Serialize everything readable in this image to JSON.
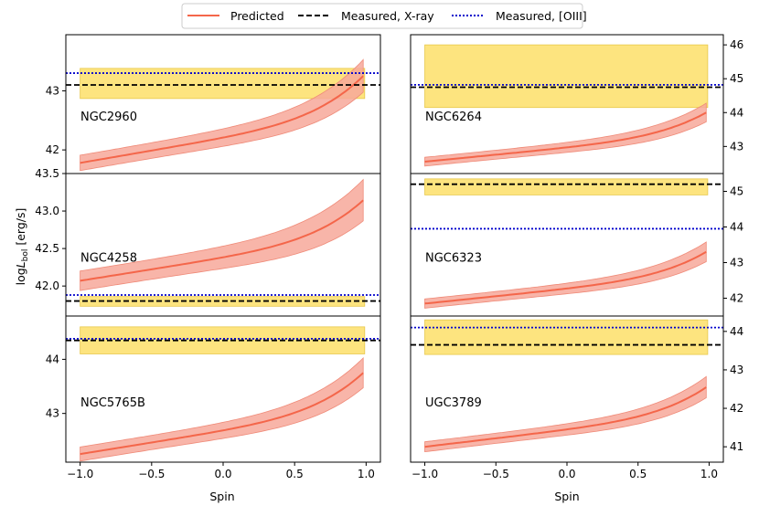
{
  "chart_data": {
    "type": "line",
    "ylabel": "logL_bol [erg/s]",
    "ylabel_parts": {
      "prefix": "log",
      "var": "L",
      "sub": "bol",
      "unit": " [erg/s]"
    },
    "legend": [
      {
        "name": "Predicted",
        "style": "solid",
        "color": "#f4664a"
      },
      {
        "name": "Measured, X-ray",
        "style": "dashed",
        "color": "#000000"
      },
      {
        "name": "Measured, [OIII]",
        "style": "dotted",
        "color": "#0000cc"
      }
    ],
    "colors": {
      "predicted": "#f4664a",
      "band": "#f7a89a",
      "measured_band": "#fde47f",
      "xray": "#000000",
      "oiii": "#0000cc"
    },
    "columns": [
      {
        "xlabel": "Spin",
        "xlim": [
          -1.1,
          1.1
        ],
        "xticks": [
          -1.0,
          -0.5,
          0.0,
          0.5,
          1.0
        ],
        "xtick_labels": [
          "−1.0",
          "−0.5",
          "0.0",
          "0.5",
          "1.0"
        ],
        "ytick_side": "left",
        "panels": [
          {
            "galaxy": "NGC2960",
            "ylim": [
              41.6,
              43.95
            ],
            "yticks": [
              42,
              43
            ],
            "ytick_labels": [
              "42",
              "43"
            ],
            "pred_start": 41.78,
            "pred_end": 43.3,
            "pred_width_start": 0.13,
            "pred_width_end": 0.28,
            "xray": 43.1,
            "oiii": 43.3,
            "measured_band": [
              42.87,
              43.38
            ]
          },
          {
            "galaxy": "NGC4258",
            "ylim": [
              41.6,
              43.5
            ],
            "yticks": [
              42.0,
              42.5,
              43.0,
              43.5
            ],
            "ytick_labels": [
              "42.0",
              "42.5",
              "43.0",
              "43.5"
            ],
            "pred_start": 42.07,
            "pred_end": 43.18,
            "pred_width_start": 0.13,
            "pred_width_end": 0.28,
            "xray": 41.8,
            "oiii": 41.88,
            "measured_band": [
              41.73,
              41.86
            ]
          },
          {
            "galaxy": "NGC5765B",
            "ylim": [
              42.1,
              44.8
            ],
            "yticks": [
              43,
              44
            ],
            "ytick_labels": [
              "43",
              "44"
            ],
            "pred_start": 42.25,
            "pred_end": 43.8,
            "pred_width_start": 0.13,
            "pred_width_end": 0.28,
            "xray": 44.35,
            "oiii": 44.38,
            "measured_band": [
              44.1,
              44.6
            ]
          }
        ]
      },
      {
        "xlabel": "Spin",
        "xlim": [
          -1.1,
          1.1
        ],
        "xticks": [
          -1.0,
          -0.5,
          0.0,
          0.5,
          1.0
        ],
        "xtick_labels": [
          "−1.0",
          "−0.5",
          "0.0",
          "0.5",
          "1.0"
        ],
        "ytick_side": "right",
        "panels": [
          {
            "galaxy": "NGC6264",
            "ylim": [
              42.2,
              46.3
            ],
            "yticks": [
              43,
              44,
              45,
              46
            ],
            "ytick_labels": [
              "43",
              "44",
              "45",
              "46"
            ],
            "pred_start": 42.55,
            "pred_end": 44.05,
            "pred_width_start": 0.13,
            "pred_width_end": 0.28,
            "xray": 44.75,
            "oiii": 44.82,
            "measured_band": [
              44.15,
              46.0
            ]
          },
          {
            "galaxy": "NGC6323",
            "ylim": [
              41.5,
              45.5
            ],
            "yticks": [
              42,
              43,
              44,
              45
            ],
            "ytick_labels": [
              "42",
              "43",
              "44",
              "45"
            ],
            "pred_start": 41.85,
            "pred_end": 43.35,
            "pred_width_start": 0.13,
            "pred_width_end": 0.28,
            "xray": 45.2,
            "oiii": 43.95,
            "measured_band": [
              44.9,
              45.35
            ]
          },
          {
            "galaxy": "UGC3789",
            "ylim": [
              40.6,
              44.4
            ],
            "yticks": [
              41,
              42,
              43,
              44
            ],
            "ytick_labels": [
              "41",
              "42",
              "43",
              "44"
            ],
            "pred_start": 41.0,
            "pred_end": 42.6,
            "pred_width_start": 0.13,
            "pred_width_end": 0.28,
            "xray": 43.65,
            "oiii": 44.1,
            "measured_band": [
              43.4,
              44.3
            ]
          }
        ]
      }
    ]
  }
}
